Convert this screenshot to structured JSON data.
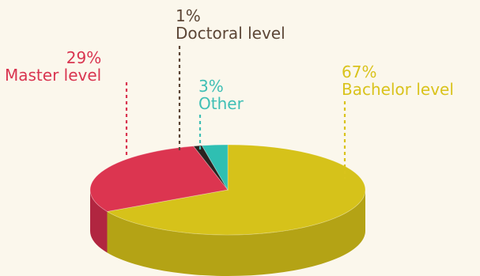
{
  "chart_data": {
    "type": "pie",
    "title": "",
    "categories": [
      "Bachelor level",
      "Master level",
      "Doctoral level",
      "Other"
    ],
    "values": [
      67,
      29,
      1,
      3
    ],
    "value_labels": [
      "67%",
      "29%",
      "1%",
      "3%"
    ],
    "slices": [
      {
        "name": "Bachelor level",
        "pct_label": "67%",
        "value": 67,
        "color": "#d6c21a",
        "side_color": "#b4a315",
        "label_color": "#d9c31c"
      },
      {
        "name": "Master level",
        "pct_label": "29%",
        "value": 29,
        "color": "#dc3550",
        "side_color": "#b12640",
        "label_color": "#d93550"
      },
      {
        "name": "Doctoral level",
        "pct_label": "1%",
        "value": 1,
        "color": "#2a2320",
        "side_color": "#1a1512",
        "label_color": "#5c4636"
      },
      {
        "name": "Other",
        "pct_label": "3%",
        "value": 3,
        "color": "#2fbfb2",
        "side_color": "#22968b",
        "label_color": "#3fbfb5"
      }
    ],
    "style": "3d-pie",
    "legend": "none"
  }
}
